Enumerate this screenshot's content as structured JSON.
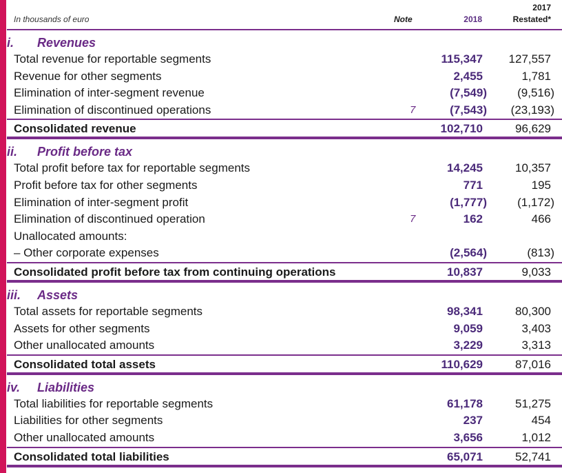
{
  "header": {
    "unit": "In thousands of euro",
    "note": "Note",
    "year_2018": "2018",
    "year_2017": "2017",
    "restated": "Restated*"
  },
  "colors": {
    "accent_bar": "#d1145a",
    "purple": "#7b2e8c",
    "value_2018": "#4b2a7a"
  },
  "sections": [
    {
      "num": "i.",
      "title": "Revenues",
      "rows": [
        {
          "label": "Total revenue for reportable segments",
          "note": "",
          "v2018": "115,347",
          "v2017": "127,557"
        },
        {
          "label": "Revenue for other segments",
          "note": "",
          "v2018": "2,455",
          "v2017": "1,781"
        },
        {
          "label": "Elimination of inter-segment revenue",
          "note": "",
          "v2018": "(7,549)",
          "v2017": "(9,516)"
        },
        {
          "label": "Elimination of discontinued operations",
          "note": "7",
          "v2018": "(7,543)",
          "v2017": "(23,193)"
        }
      ],
      "total": {
        "label": "Consolidated revenue",
        "v2018": "102,710",
        "v2017": "96,629"
      }
    },
    {
      "num": "ii.",
      "title": "Profit before tax",
      "rows": [
        {
          "label": "Total profit before tax for reportable segments",
          "note": "",
          "v2018": "14,245",
          "v2017": "10,357"
        },
        {
          "label": "Profit before tax for other segments",
          "note": "",
          "v2018": "771",
          "v2017": "195"
        },
        {
          "label": "Elimination of inter-segment profit",
          "note": "",
          "v2018": "(1,777)",
          "v2017": "(1,172)"
        },
        {
          "label": "Elimination of discontinued operation",
          "note": "7",
          "v2018": "162",
          "v2017": "466"
        },
        {
          "label": "Unallocated amounts:",
          "note": "",
          "v2018": "",
          "v2017": ""
        },
        {
          "label": "–  Other corporate expenses",
          "note": "",
          "v2018": "(2,564)",
          "v2017": "(813)"
        }
      ],
      "total": {
        "label": "Consolidated profit before tax from continuing operations",
        "v2018": "10,837",
        "v2017": "9,033"
      }
    },
    {
      "num": "iii.",
      "title": "Assets",
      "rows": [
        {
          "label": "Total assets for reportable segments",
          "note": "",
          "v2018": "98,341",
          "v2017": "80,300"
        },
        {
          "label": "Assets for other segments",
          "note": "",
          "v2018": "9,059",
          "v2017": "3,403"
        },
        {
          "label": "Other unallocated amounts",
          "note": "",
          "v2018": "3,229",
          "v2017": "3,313"
        }
      ],
      "total": {
        "label": "Consolidated total assets",
        "v2018": "110,629",
        "v2017": "87,016"
      }
    },
    {
      "num": "iv.",
      "title": "Liabilities",
      "rows": [
        {
          "label": "Total liabilities for reportable segments",
          "note": "",
          "v2018": "61,178",
          "v2017": "51,275"
        },
        {
          "label": "Liabilities for other segments",
          "note": "",
          "v2018": "237",
          "v2017": "454"
        },
        {
          "label": "Other unallocated amounts",
          "note": "",
          "v2018": "3,656",
          "v2017": "1,012"
        }
      ],
      "total": {
        "label": "Consolidated total liabilities",
        "v2018": "65,071",
        "v2017": "52,741"
      }
    }
  ]
}
